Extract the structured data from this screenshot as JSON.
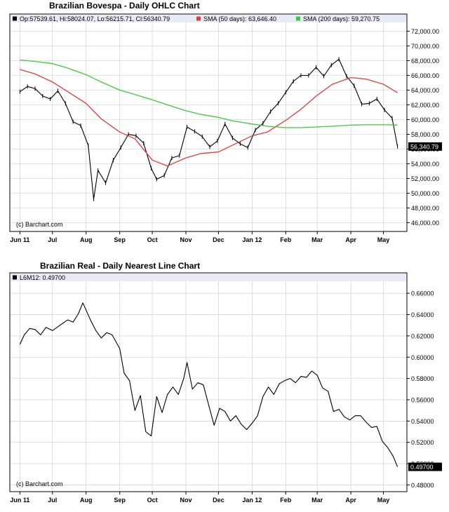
{
  "colors": {
    "sma50": "#e03c3c",
    "sma200": "#3cc83c",
    "price": "#000000",
    "grid": "#c8c8c8",
    "legend_bg": "#e8eaf6",
    "last_label_bg": "#000000",
    "last_label_fg": "#ffffff"
  },
  "chart_data": [
    {
      "type": "line",
      "subtype": "ohlc",
      "title": "Brazilian Bovespa - Daily OHLC Chart",
      "legend": {
        "ohlc": "Op:57539.61, Hi:58024.07, Lo:56215.71, Cl:56340.79",
        "sma50": "SMA (50 days): 63,646.40",
        "sma200": "SMA (200 days): 59,270.75"
      },
      "watermark": "(c) Barchart.com",
      "last_value_label": "56,340.79",
      "xlabel": "",
      "ylabel": "",
      "x_tick_labels": [
        "Jun 11",
        "Jul",
        "Aug",
        "Sep",
        "Oct",
        "Nov",
        "Dec",
        "Jan 12",
        "Feb",
        "Mar",
        "Apr",
        "May"
      ],
      "y_tick_labels": [
        "46,000.00",
        "48,000.00",
        "50,000.00",
        "52,000.00",
        "54,000.00",
        "56,000.00",
        "58,000.00",
        "60,000.00",
        "62,000.00",
        "64,000.00",
        "66,000.00",
        "68,000.00",
        "70,000.00",
        "72,000.00"
      ],
      "ylim": [
        45000,
        73000
      ],
      "grid": true,
      "series": [
        {
          "name": "OHLC",
          "x": [
            "2011-06-01",
            "2011-06-08",
            "2011-06-15",
            "2011-06-22",
            "2011-06-29",
            "2011-07-06",
            "2011-07-13",
            "2011-07-20",
            "2011-07-27",
            "2011-08-03",
            "2011-08-08",
            "2011-08-12",
            "2011-08-19",
            "2011-08-26",
            "2011-09-02",
            "2011-09-09",
            "2011-09-16",
            "2011-09-23",
            "2011-09-30",
            "2011-10-05",
            "2011-10-12",
            "2011-10-19",
            "2011-10-26",
            "2011-11-02",
            "2011-11-09",
            "2011-11-16",
            "2011-11-23",
            "2011-11-30",
            "2011-12-07",
            "2011-12-14",
            "2011-12-21",
            "2011-12-28",
            "2012-01-04",
            "2012-01-11",
            "2012-01-18",
            "2012-01-25",
            "2012-02-01",
            "2012-02-08",
            "2012-02-15",
            "2012-02-22",
            "2012-02-29",
            "2012-03-07",
            "2012-03-14",
            "2012-03-21",
            "2012-03-28",
            "2012-04-04",
            "2012-04-11",
            "2012-04-18",
            "2012-04-25",
            "2012-05-02",
            "2012-05-09",
            "2012-05-14"
          ],
          "values": [
            63800,
            64500,
            64200,
            63200,
            62800,
            63900,
            62200,
            59700,
            59200,
            56500,
            49200,
            53100,
            51400,
            54500,
            56200,
            58000,
            57800,
            56800,
            53400,
            51900,
            52400,
            54800,
            55100,
            59000,
            58400,
            57700,
            56300,
            57100,
            59400,
            57500,
            56700,
            56200,
            58600,
            59500,
            61100,
            62200,
            63700,
            65200,
            66000,
            66000,
            67100,
            65900,
            67400,
            68200,
            65900,
            64600,
            62100,
            62200,
            62800,
            61300,
            60200,
            56340.79
          ]
        },
        {
          "name": "SMA (50 days)",
          "x": [
            "2011-06-01",
            "2011-06-15",
            "2011-07-01",
            "2011-07-15",
            "2011-08-01",
            "2011-08-15",
            "2011-09-01",
            "2011-09-15",
            "2011-10-01",
            "2011-10-15",
            "2011-11-01",
            "2011-11-15",
            "2011-12-01",
            "2011-12-15",
            "2012-01-01",
            "2012-01-15",
            "2012-02-01",
            "2012-02-15",
            "2012-03-01",
            "2012-03-15",
            "2012-04-01",
            "2012-04-15",
            "2012-05-01",
            "2012-05-14"
          ],
          "values": [
            66800,
            66200,
            65100,
            63800,
            62200,
            60100,
            58300,
            57400,
            54500,
            53700,
            54800,
            55400,
            55600,
            56600,
            57800,
            58300,
            59900,
            61400,
            63300,
            64800,
            65700,
            65500,
            64800,
            63646.4
          ]
        },
        {
          "name": "SMA (200 days)",
          "x": [
            "2011-06-01",
            "2011-06-15",
            "2011-07-01",
            "2011-07-15",
            "2011-08-01",
            "2011-08-15",
            "2011-09-01",
            "2011-09-15",
            "2011-10-01",
            "2011-10-15",
            "2011-11-01",
            "2011-11-15",
            "2011-12-01",
            "2011-12-15",
            "2012-01-01",
            "2012-01-15",
            "2012-02-01",
            "2012-02-15",
            "2012-03-01",
            "2012-03-15",
            "2012-04-01",
            "2012-04-15",
            "2012-05-01",
            "2012-05-14"
          ],
          "values": [
            68100,
            67900,
            67600,
            67000,
            66100,
            65100,
            64000,
            63400,
            62700,
            62000,
            61200,
            60700,
            60300,
            59800,
            59400,
            59100,
            58900,
            58900,
            59000,
            59100,
            59250,
            59300,
            59300,
            59270.75
          ]
        }
      ]
    },
    {
      "type": "line",
      "title": "Brazilian Real - Daily Nearest Line Chart",
      "legend": {
        "series": "L6M12: 0.49700"
      },
      "watermark": "(c) Barchart.com",
      "last_value_label": "0.49700",
      "xlabel": "",
      "ylabel": "",
      "x_tick_labels": [
        "Jun 11",
        "Jul",
        "Aug",
        "Sep",
        "Oct",
        "Nov",
        "Dec",
        "Jan 12",
        "Feb",
        "Mar",
        "Apr",
        "May"
      ],
      "y_tick_labels": [
        "0.48000",
        "0.50000",
        "0.52000",
        "0.54000",
        "0.56000",
        "0.58000",
        "0.60000",
        "0.62000",
        "0.64000",
        "0.66000"
      ],
      "ylim": [
        0.475,
        0.67
      ],
      "grid": true,
      "series": [
        {
          "name": "L6M12",
          "x": [
            "2011-06-01",
            "2011-06-05",
            "2011-06-10",
            "2011-06-15",
            "2011-06-20",
            "2011-06-25",
            "2011-07-01",
            "2011-07-08",
            "2011-07-15",
            "2011-07-20",
            "2011-07-25",
            "2011-07-29",
            "2011-08-05",
            "2011-08-10",
            "2011-08-15",
            "2011-08-20",
            "2011-08-25",
            "2011-09-01",
            "2011-09-05",
            "2011-09-10",
            "2011-09-15",
            "2011-09-20",
            "2011-09-25",
            "2011-09-30",
            "2011-10-05",
            "2011-10-10",
            "2011-10-15",
            "2011-10-20",
            "2011-10-25",
            "2011-10-30",
            "2011-11-02",
            "2011-11-07",
            "2011-11-12",
            "2011-11-17",
            "2011-11-22",
            "2011-11-27",
            "2011-12-02",
            "2011-12-07",
            "2011-12-12",
            "2011-12-17",
            "2011-12-22",
            "2011-12-27",
            "2012-01-01",
            "2012-01-06",
            "2012-01-11",
            "2012-01-16",
            "2012-01-21",
            "2012-01-26",
            "2012-01-31",
            "2012-02-05",
            "2012-02-10",
            "2012-02-15",
            "2012-02-20",
            "2012-02-25",
            "2012-03-01",
            "2012-03-06",
            "2012-03-11",
            "2012-03-16",
            "2012-03-21",
            "2012-03-26",
            "2012-03-31",
            "2012-04-05",
            "2012-04-10",
            "2012-04-15",
            "2012-04-20",
            "2012-04-25",
            "2012-04-30",
            "2012-05-05",
            "2012-05-10",
            "2012-05-14"
          ],
          "values": [
            0.612,
            0.621,
            0.627,
            0.626,
            0.621,
            0.628,
            0.625,
            0.63,
            0.635,
            0.633,
            0.641,
            0.651,
            0.635,
            0.625,
            0.618,
            0.623,
            0.621,
            0.608,
            0.585,
            0.578,
            0.55,
            0.564,
            0.53,
            0.526,
            0.563,
            0.548,
            0.565,
            0.572,
            0.565,
            0.58,
            0.595,
            0.57,
            0.576,
            0.574,
            0.555,
            0.536,
            0.552,
            0.549,
            0.54,
            0.545,
            0.537,
            0.532,
            0.538,
            0.545,
            0.563,
            0.572,
            0.565,
            0.575,
            0.578,
            0.58,
            0.576,
            0.582,
            0.581,
            0.587,
            0.583,
            0.571,
            0.568,
            0.549,
            0.551,
            0.544,
            0.541,
            0.545,
            0.545,
            0.539,
            0.534,
            0.535,
            0.521,
            0.515,
            0.507,
            0.497
          ]
        }
      ]
    }
  ]
}
